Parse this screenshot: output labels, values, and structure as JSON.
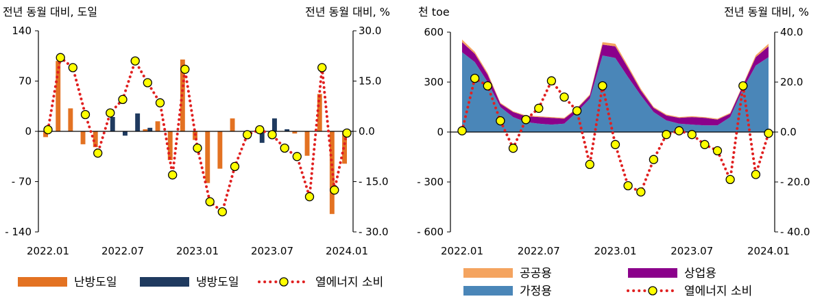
{
  "chart_data": [
    {
      "type": "bar+line",
      "left_axis_title": "전년 동월 대비, 도일",
      "right_axis_title": "전년 동월 대비, %",
      "left_ticks": [
        "140",
        "70",
        "0",
        "- 70",
        "- 140"
      ],
      "right_ticks": [
        "30.0",
        "15.0",
        "0.0",
        "- 15.0",
        "- 30.0"
      ],
      "ylim_left": [
        -140,
        140
      ],
      "ylim_right": [
        -30,
        30
      ],
      "x_tick_labels": [
        "2022.01",
        "2022.07",
        "2023.01",
        "2023.07",
        "2024.01"
      ],
      "x": [
        "2022.01",
        "2022.02",
        "2022.03",
        "2022.04",
        "2022.05",
        "2022.06",
        "2022.07",
        "2022.08",
        "2022.09",
        "2022.10",
        "2022.11",
        "2022.12",
        "2023.01",
        "2023.02",
        "2023.03",
        "2023.04",
        "2023.05",
        "2023.06",
        "2023.07",
        "2023.08",
        "2023.09",
        "2023.10",
        "2023.11",
        "2023.12",
        "2024.01"
      ],
      "series": [
        {
          "name": "난방도일",
          "kind": "bar",
          "axis": "left",
          "values": [
            -8,
            98,
            32,
            -18,
            -22,
            0,
            0,
            0,
            3,
            14,
            -40,
            100,
            -12,
            -72,
            -52,
            18,
            0,
            0,
            0,
            0,
            -3,
            -34,
            52,
            -115,
            -45
          ]
        },
        {
          "name": "냉방도일",
          "kind": "bar",
          "axis": "left",
          "values": [
            0,
            0,
            0,
            0,
            0,
            20,
            -6,
            25,
            5,
            0,
            0,
            0,
            0,
            0,
            0,
            0,
            0,
            -16,
            18,
            3,
            0,
            0,
            0,
            0,
            0
          ]
        },
        {
          "name": "열에너지 소비",
          "kind": "line",
          "axis": "right",
          "values": [
            0.5,
            22.0,
            19.0,
            5.0,
            -6.5,
            5.5,
            9.5,
            21.0,
            14.5,
            8.5,
            -13.0,
            18.5,
            -5.0,
            -21.0,
            -24.0,
            -10.5,
            -1.0,
            0.5,
            -1.0,
            -5.0,
            -7.5,
            -19.5,
            19.0,
            -17.5,
            -0.5
          ]
        }
      ],
      "legend": [
        {
          "label": "난방도일",
          "color": "#e37222"
        },
        {
          "label": "냉방도일",
          "color": "#1f3a5f"
        },
        {
          "label": "열에너지 소비",
          "color": "#e02020",
          "marker": "#ffff00"
        }
      ]
    },
    {
      "type": "stacked-area+line",
      "left_axis_title": "천 toe",
      "right_axis_title": "전년 동월 대비, %",
      "left_ticks": [
        "600",
        "300",
        "0",
        "- 300",
        "- 600"
      ],
      "right_ticks": [
        "40.0",
        "20.0",
        "0.0",
        "- 20.0",
        "- 40.0"
      ],
      "ylim_left": [
        -600,
        600
      ],
      "ylim_right": [
        -40,
        40
      ],
      "x_tick_labels": [
        "2022.01",
        "2022.07",
        "2023.01",
        "2023.07",
        "2024.01"
      ],
      "x": [
        "2022.01",
        "2022.02",
        "2022.03",
        "2022.04",
        "2022.05",
        "2022.06",
        "2022.07",
        "2022.08",
        "2022.09",
        "2022.10",
        "2022.11",
        "2022.12",
        "2023.01",
        "2023.02",
        "2023.03",
        "2023.04",
        "2023.05",
        "2023.06",
        "2023.07",
        "2023.08",
        "2023.09",
        "2023.10",
        "2023.11",
        "2023.12",
        "2024.01"
      ],
      "series": [
        {
          "name": "가정용",
          "kind": "area",
          "axis": "left",
          "values": [
            480,
            420,
            300,
            150,
            90,
            60,
            50,
            45,
            50,
            120,
            200,
            460,
            445,
            330,
            220,
            120,
            70,
            50,
            45,
            40,
            40,
            90,
            260,
            400,
            450
          ]
        },
        {
          "name": "상업용",
          "kind": "area",
          "axis": "left",
          "values": [
            60,
            50,
            45,
            20,
            30,
            35,
            40,
            40,
            30,
            20,
            20,
            65,
            70,
            55,
            30,
            25,
            30,
            35,
            45,
            45,
            35,
            20,
            20,
            50,
            65
          ]
        },
        {
          "name": "공공용",
          "kind": "area",
          "axis": "left",
          "values": [
            15,
            12,
            10,
            6,
            5,
            5,
            5,
            5,
            5,
            5,
            6,
            15,
            15,
            12,
            10,
            6,
            5,
            5,
            5,
            5,
            5,
            5,
            6,
            12,
            15
          ]
        },
        {
          "name": "열에너지 소비",
          "kind": "line",
          "axis": "right",
          "values": [
            0.5,
            21.5,
            18.5,
            4.5,
            -6.5,
            5.0,
            9.5,
            20.5,
            14.0,
            8.5,
            -13.0,
            18.5,
            -5.0,
            -21.5,
            -24.0,
            -11.0,
            -1.0,
            0.5,
            -1.0,
            -5.0,
            -7.5,
            -19.0,
            18.5,
            -17.0,
            -0.5
          ]
        }
      ],
      "legend": [
        {
          "label": "공공용",
          "color": "#f4a460"
        },
        {
          "label": "상업용",
          "color": "#8b008b"
        },
        {
          "label": "가정용",
          "color": "#4a86b8"
        },
        {
          "label": "열에너지 소비",
          "color": "#e02020",
          "marker": "#ffff00"
        }
      ]
    }
  ]
}
